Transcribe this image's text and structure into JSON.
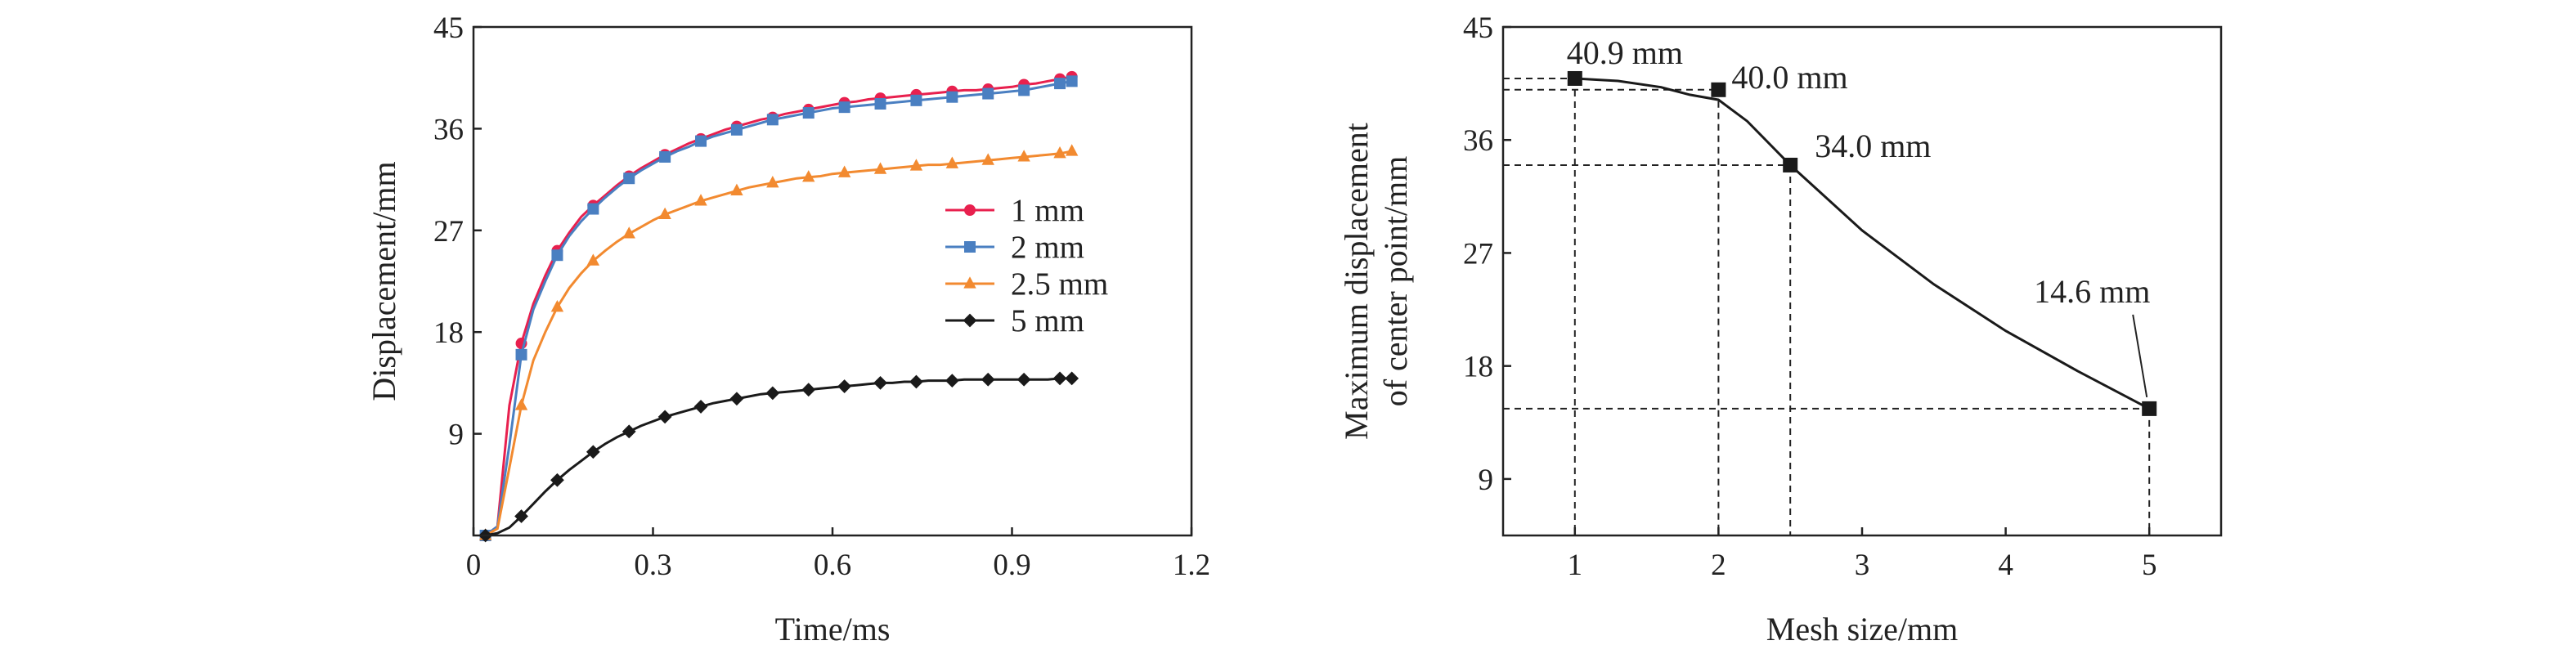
{
  "chart_data": [
    {
      "type": "line",
      "title": "",
      "xlabel": "Time/ms",
      "ylabel": "Displacement/mm",
      "xlim": [
        0,
        1.2
      ],
      "ylim": [
        0,
        45
      ],
      "xticks": [
        0,
        0.3,
        0.6,
        0.9,
        1.2
      ],
      "xtick_labels": [
        "0",
        "0.3",
        "0.6",
        "0.9",
        "1.2"
      ],
      "yticks": [
        9,
        18,
        27,
        36,
        45
      ],
      "ytick_labels": [
        "9",
        "18",
        "27",
        "36",
        "45"
      ],
      "grid": false,
      "legend": {
        "position": "right",
        "entries": [
          "1 mm",
          "2 mm",
          "2.5 mm",
          "5 mm"
        ]
      },
      "x": [
        0.02,
        0.04,
        0.06,
        0.08,
        0.1,
        0.12,
        0.14,
        0.16,
        0.18,
        0.2,
        0.22,
        0.24,
        0.26,
        0.28,
        0.3,
        0.32,
        0.34,
        0.36,
        0.38,
        0.4,
        0.42,
        0.44,
        0.46,
        0.48,
        0.5,
        0.52,
        0.54,
        0.56,
        0.58,
        0.6,
        0.62,
        0.64,
        0.66,
        0.68,
        0.7,
        0.72,
        0.74,
        0.76,
        0.78,
        0.8,
        0.82,
        0.84,
        0.86,
        0.88,
        0.9,
        0.92,
        0.94,
        0.96,
        0.98,
        1.0
      ],
      "series": [
        {
          "name": "1 mm",
          "color": "#e8204e",
          "marker": "circle",
          "values": [
            0,
            0.8,
            11.5,
            17.0,
            20.5,
            23.0,
            25.2,
            26.8,
            28.2,
            29.2,
            30.1,
            31.0,
            31.8,
            32.5,
            33.1,
            33.7,
            34.2,
            34.7,
            35.1,
            35.5,
            35.9,
            36.2,
            36.5,
            36.8,
            37.0,
            37.3,
            37.5,
            37.7,
            37.9,
            38.1,
            38.3,
            38.4,
            38.6,
            38.7,
            38.8,
            38.9,
            39.0,
            39.1,
            39.2,
            39.3,
            39.4,
            39.4,
            39.5,
            39.6,
            39.7,
            39.9,
            40.0,
            40.2,
            40.4,
            40.6
          ]
        },
        {
          "name": "2 mm",
          "color": "#4a7fc1",
          "marker": "square",
          "values": [
            0,
            0.8,
            8.0,
            16.0,
            20.0,
            22.5,
            24.8,
            26.5,
            27.8,
            28.9,
            29.9,
            30.8,
            31.6,
            32.3,
            32.9,
            33.5,
            34.0,
            34.4,
            34.9,
            35.3,
            35.6,
            35.9,
            36.2,
            36.5,
            36.8,
            37.0,
            37.2,
            37.4,
            37.6,
            37.8,
            37.9,
            38.0,
            38.1,
            38.2,
            38.3,
            38.4,
            38.5,
            38.6,
            38.7,
            38.8,
            38.9,
            39.0,
            39.1,
            39.2,
            39.3,
            39.4,
            39.6,
            39.8,
            40.0,
            40.2
          ]
        },
        {
          "name": "2.5 mm",
          "color": "#f28a30",
          "marker": "triangle",
          "values": [
            0,
            0.6,
            6.0,
            11.5,
            15.5,
            18.0,
            20.2,
            21.9,
            23.2,
            24.3,
            25.2,
            26.0,
            26.7,
            27.3,
            27.9,
            28.4,
            28.8,
            29.2,
            29.6,
            29.9,
            30.2,
            30.5,
            30.8,
            31.0,
            31.2,
            31.4,
            31.6,
            31.7,
            31.8,
            32.0,
            32.1,
            32.2,
            32.3,
            32.4,
            32.5,
            32.6,
            32.7,
            32.8,
            32.8,
            32.9,
            33.0,
            33.1,
            33.2,
            33.3,
            33.4,
            33.5,
            33.6,
            33.7,
            33.8,
            34.0
          ]
        },
        {
          "name": "5 mm",
          "color": "#1a1a1a",
          "marker": "diamond",
          "values": [
            0,
            0.2,
            0.7,
            1.7,
            2.8,
            3.9,
            4.9,
            5.8,
            6.6,
            7.4,
            8.1,
            8.7,
            9.2,
            9.7,
            10.1,
            10.5,
            10.8,
            11.1,
            11.4,
            11.7,
            11.9,
            12.1,
            12.3,
            12.5,
            12.6,
            12.7,
            12.8,
            12.9,
            13.0,
            13.1,
            13.2,
            13.3,
            13.4,
            13.5,
            13.5,
            13.6,
            13.6,
            13.7,
            13.7,
            13.7,
            13.8,
            13.8,
            13.8,
            13.8,
            13.8,
            13.8,
            13.8,
            13.8,
            13.9,
            13.9
          ]
        }
      ]
    },
    {
      "type": "line",
      "title": "",
      "xlabel": "Mesh size/mm",
      "ylabel": [
        "Maximum displacement",
        "of center point/mm"
      ],
      "xlim": [
        0.5,
        5.5
      ],
      "ylim": [
        4.5,
        45
      ],
      "xticks": [
        1,
        2,
        3,
        4,
        5
      ],
      "xtick_labels": [
        "1",
        "2",
        "3",
        "4",
        "5"
      ],
      "yticks": [
        9,
        18,
        27,
        36,
        45
      ],
      "ytick_labels": [
        "9",
        "18",
        "27",
        "36",
        "45"
      ],
      "grid": false,
      "points": {
        "x": [
          1,
          2,
          2.5,
          5
        ],
        "y": [
          40.9,
          40.0,
          34.0,
          14.6
        ],
        "labels": [
          "40.9 mm",
          "40.0 mm",
          "34.0 mm",
          "14.6 mm"
        ]
      },
      "curve": {
        "x": [
          1,
          1.3,
          1.6,
          1.8,
          2.0,
          2.2,
          2.5,
          3.0,
          3.5,
          4.0,
          4.5,
          5.0
        ],
        "y": [
          40.9,
          40.7,
          40.2,
          39.6,
          39.2,
          37.5,
          34.0,
          28.8,
          24.5,
          20.8,
          17.6,
          14.6
        ]
      }
    }
  ]
}
